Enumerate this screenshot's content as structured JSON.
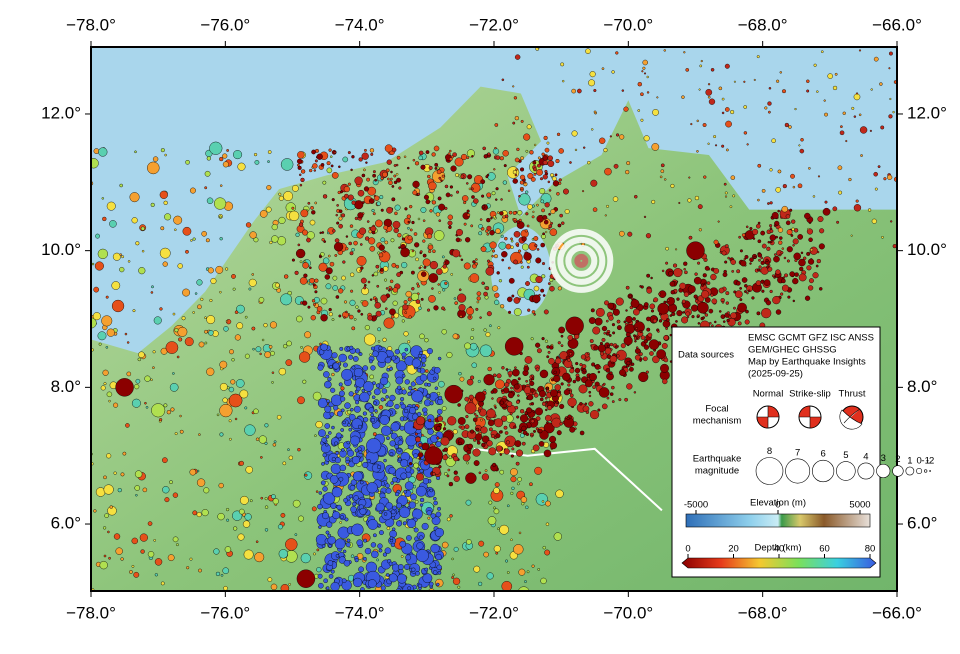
{
  "map": {
    "xlim": [
      -78,
      -66
    ],
    "ylim": [
      5.02,
      12.98
    ],
    "xticks": [
      {
        "value": -78,
        "label": "−78.0°"
      },
      {
        "value": -76,
        "label": "−76.0°"
      },
      {
        "value": -74,
        "label": "−74.0°"
      },
      {
        "value": -72,
        "label": "−72.0°"
      },
      {
        "value": -70,
        "label": "−70.0°"
      },
      {
        "value": -68,
        "label": "−68.0°"
      },
      {
        "value": -66,
        "label": "−66.0°"
      }
    ],
    "yticks": [
      {
        "value": 6,
        "label": "6.0°"
      },
      {
        "value": 8,
        "label": "8.0°"
      },
      {
        "value": 10,
        "label": "10.0°"
      },
      {
        "value": 12,
        "label": "12.0°"
      }
    ],
    "legend": {
      "data_sources_label": "Data sources",
      "data_sources": [
        "EMSC GCMT GFZ ISC ANSS",
        "GEM/GHEC GHSSG",
        "Map by Earthquake Insights",
        "(2025-09-25)"
      ],
      "focal_mechanism_label": [
        "Focal",
        "mechanism"
      ],
      "mechanisms": [
        "Normal",
        "Strike-slip",
        "Thrust"
      ],
      "magnitude_label": [
        "Earthquake",
        "magnitude"
      ],
      "magnitudes": [
        8,
        7,
        6,
        5,
        4,
        3,
        2,
        1,
        0,
        -1,
        -2
      ],
      "elevation": {
        "title": "Elevation (m)",
        "ticks": [
          -5000,
          0,
          5000
        ]
      },
      "depth": {
        "title": "Depth (km)",
        "ticks": [
          0,
          20,
          40,
          60,
          80
        ]
      }
    }
  }
}
